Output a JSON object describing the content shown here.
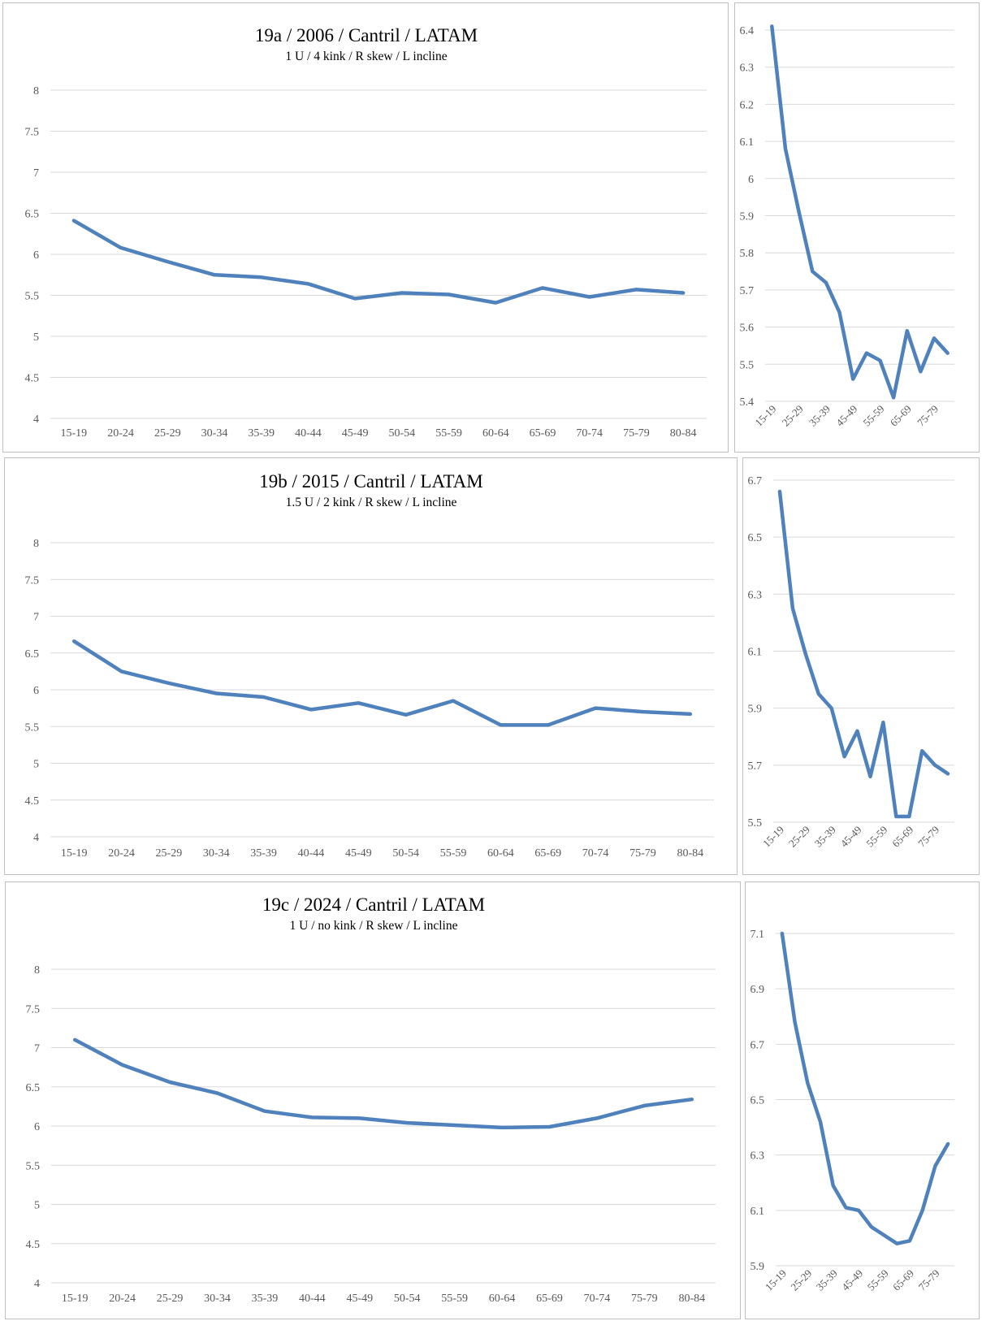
{
  "colors": {
    "line": "#4f81bd",
    "grid": "#d9d9d9",
    "tick": "#595959",
    "border": "#bfbfbf"
  },
  "chart_data": [
    {
      "type": "line",
      "title": "19a / 2006 / Cantril / LATAM",
      "subtitle": "1 U / 4 kink / R skew / L incline",
      "categories": [
        "15-19",
        "20-24",
        "25-29",
        "30-34",
        "35-39",
        "40-44",
        "45-49",
        "50-54",
        "55-59",
        "60-64",
        "65-69",
        "70-74",
        "75-79",
        "80-84"
      ],
      "values": [
        6.41,
        6.08,
        5.91,
        5.75,
        5.72,
        5.64,
        5.46,
        5.53,
        5.51,
        5.41,
        5.59,
        5.48,
        5.57,
        5.53
      ],
      "ylim": [
        4,
        8
      ],
      "yticks": [
        "4",
        "4.5",
        "5",
        "5.5",
        "6",
        "6.5",
        "7",
        "7.5",
        "8"
      ],
      "grid": true
    },
    {
      "type": "line",
      "title": "",
      "categories": [
        "15-19",
        "20-24",
        "25-29",
        "30-34",
        "35-39",
        "40-44",
        "45-49",
        "50-54",
        "55-59",
        "60-64",
        "65-69",
        "70-74",
        "75-79",
        "80-84"
      ],
      "xtick_labels": [
        "15-19",
        "25-29",
        "35-39",
        "45-49",
        "55-59",
        "65-69",
        "75-79"
      ],
      "values": [
        6.41,
        6.08,
        5.91,
        5.75,
        5.72,
        5.64,
        5.46,
        5.53,
        5.51,
        5.41,
        5.59,
        5.48,
        5.57,
        5.53
      ],
      "ylim": [
        5.4,
        6.4
      ],
      "yticks": [
        "5.4",
        "5.5",
        "5.6",
        "5.7",
        "5.8",
        "5.9",
        "6",
        "6.1",
        "6.2",
        "6.3",
        "6.4"
      ],
      "grid": true
    },
    {
      "type": "line",
      "title": "19b / 2015 / Cantril / LATAM",
      "subtitle": "1.5 U / 2 kink / R skew / L incline",
      "categories": [
        "15-19",
        "20-24",
        "25-29",
        "30-34",
        "35-39",
        "40-44",
        "45-49",
        "50-54",
        "55-59",
        "60-64",
        "65-69",
        "70-74",
        "75-79",
        "80-84"
      ],
      "values": [
        6.66,
        6.25,
        6.09,
        5.95,
        5.9,
        5.73,
        5.82,
        5.66,
        5.85,
        5.52,
        5.52,
        5.75,
        5.7,
        5.67
      ],
      "ylim": [
        4,
        8
      ],
      "yticks": [
        "4",
        "4.5",
        "5",
        "5.5",
        "6",
        "6.5",
        "7",
        "7.5",
        "8"
      ],
      "grid": true
    },
    {
      "type": "line",
      "title": "",
      "categories": [
        "15-19",
        "20-24",
        "25-29",
        "30-34",
        "35-39",
        "40-44",
        "45-49",
        "50-54",
        "55-59",
        "60-64",
        "65-69",
        "70-74",
        "75-79",
        "80-84"
      ],
      "xtick_labels": [
        "15-19",
        "25-29",
        "35-39",
        "45-49",
        "55-59",
        "65-69",
        "75-79"
      ],
      "values": [
        6.66,
        6.25,
        6.09,
        5.95,
        5.9,
        5.73,
        5.82,
        5.66,
        5.85,
        5.52,
        5.52,
        5.75,
        5.7,
        5.67
      ],
      "ylim": [
        5.5,
        6.7
      ],
      "yticks": [
        "5.5",
        "5.7",
        "5.9",
        "6.1",
        "6.3",
        "6.5",
        "6.7"
      ],
      "grid": true
    },
    {
      "type": "line",
      "title": "19c / 2024 / Cantril / LATAM",
      "subtitle": "1 U / no kink / R skew / L incline",
      "categories": [
        "15-19",
        "20-24",
        "25-29",
        "30-34",
        "35-39",
        "40-44",
        "45-49",
        "50-54",
        "55-59",
        "60-64",
        "65-69",
        "70-74",
        "75-79",
        "80-84"
      ],
      "values": [
        7.1,
        6.78,
        6.56,
        6.42,
        6.19,
        6.11,
        6.1,
        6.04,
        6.01,
        5.98,
        5.99,
        6.1,
        6.26,
        6.34
      ],
      "ylim": [
        4,
        8
      ],
      "yticks": [
        "4",
        "4.5",
        "5",
        "5.5",
        "6",
        "6.5",
        "7",
        "7.5",
        "8"
      ],
      "grid": true
    },
    {
      "type": "line",
      "title": "",
      "categories": [
        "15-19",
        "20-24",
        "25-29",
        "30-34",
        "35-39",
        "40-44",
        "45-49",
        "50-54",
        "55-59",
        "60-64",
        "65-69",
        "70-74",
        "75-79",
        "80-84"
      ],
      "xtick_labels": [
        "15-19",
        "25-29",
        "35-39",
        "45-49",
        "55-59",
        "65-69",
        "75-79"
      ],
      "values": [
        7.1,
        6.78,
        6.56,
        6.42,
        6.19,
        6.11,
        6.1,
        6.04,
        6.01,
        5.98,
        5.99,
        6.1,
        6.26,
        6.34
      ],
      "ylim": [
        5.9,
        7.1
      ],
      "yticks": [
        "5.9",
        "6.1",
        "6.3",
        "6.5",
        "6.7",
        "6.9",
        "7.1"
      ],
      "grid": true
    }
  ]
}
